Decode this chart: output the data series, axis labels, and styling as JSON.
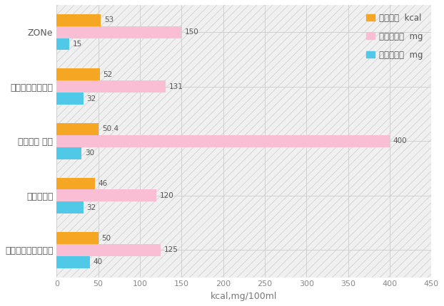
{
  "categories": [
    "モンスターエナジー",
    "レッドブル",
    "アイアン ボス",
    "ドラゴンブースト",
    "ZONe"
  ],
  "calorie": [
    50,
    46,
    50.4,
    52,
    53
  ],
  "arginine": [
    125,
    120,
    400,
    131,
    150
  ],
  "caffeine": [
    40,
    32,
    30,
    32,
    15
  ],
  "calorie_color": "#F5A623",
  "arginine_color": "#F9BDD4",
  "caffeine_color": "#50C8E8",
  "bar_height": 0.22,
  "xlim": [
    0,
    450
  ],
  "xticks": [
    0,
    50,
    100,
    150,
    200,
    250,
    300,
    350,
    400,
    450
  ],
  "xlabel": "kcal,mg/100ml",
  "legend_calorie": "カロリー  kcal",
  "legend_arginine": "アルギニン  mg",
  "legend_caffeine": "カフェイン  mg",
  "grid_color": "#cccccc",
  "background_color": "#ffffff",
  "hatch_color": "#e0e0e0",
  "label_fontsize": 7.5,
  "tick_fontsize": 8,
  "legend_fontsize": 8.5,
  "ytick_fontsize": 9
}
